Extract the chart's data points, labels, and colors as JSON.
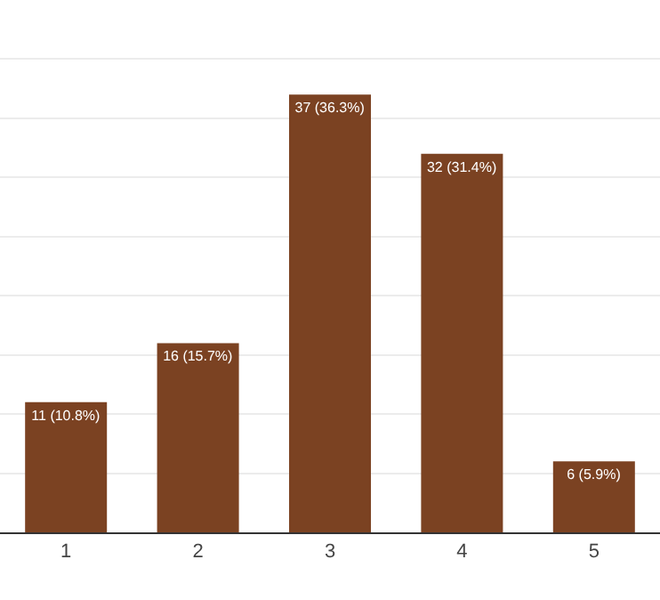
{
  "chart_data": {
    "type": "bar",
    "categories": [
      "1",
      "2",
      "3",
      "4",
      "5"
    ],
    "values": [
      11,
      16,
      37,
      32,
      6
    ],
    "color": "#7b4222",
    "value_labels": [
      "11 (10.8%)",
      "16 (15.7%)",
      "37 (36.3%)",
      "32 (31.4%)",
      "6 (5.9%)"
    ],
    "ylim": [
      0,
      45
    ],
    "yticks": [
      0,
      {
        "value": 5,
        "label": null
      },
      {
        "value": 10,
        "label": null
      },
      {
        "value": 15,
        "label": null
      },
      {
        "value": 20,
        "label": null
      },
      {
        "value": 25,
        "label": null
      },
      {
        "value": 30,
        "label": null
      },
      {
        "value": 35,
        "label": null
      },
      {
        "value": 40,
        "label": null
      }
    ],
    "grid": "y",
    "tick_labels": "x"
  }
}
